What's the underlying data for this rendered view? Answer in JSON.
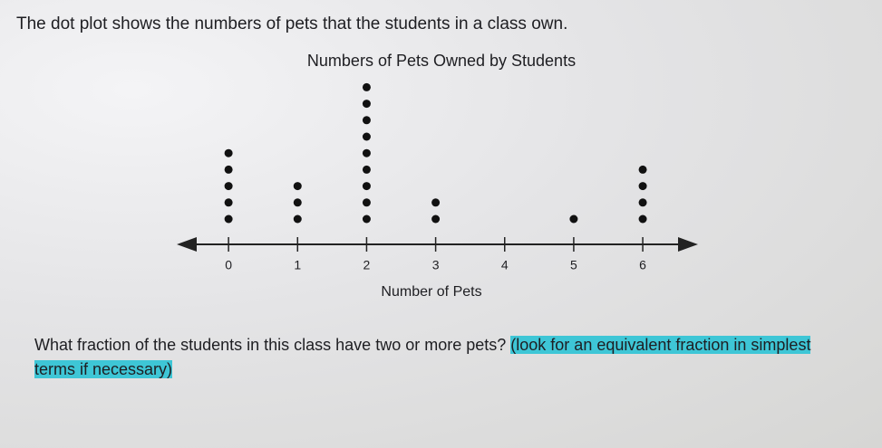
{
  "intro": "The dot plot shows the numbers of pets that the students in a class own.",
  "chart_data": {
    "type": "dot",
    "title": "Numbers of Pets Owned by Students",
    "x_label": "Number of Pets",
    "x": [
      0,
      1,
      2,
      3,
      4,
      5,
      6
    ],
    "values": [
      5,
      3,
      9,
      2,
      0,
      1,
      4
    ],
    "xlim": [
      -0.75,
      6.8
    ],
    "xticks": [
      0,
      1,
      2,
      3,
      4,
      5,
      6
    ],
    "color": "#111111"
  },
  "question": "What fraction of the students in this class have two or more pets?",
  "hint": "(look for an equivalent fraction in simplest terms if necessary)"
}
